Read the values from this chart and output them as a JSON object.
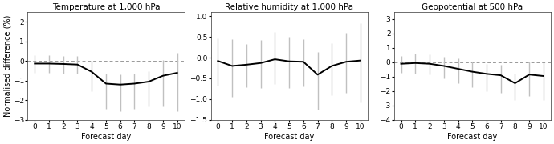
{
  "panels": [
    {
      "title": "Temperature at 1,000 hPa",
      "x": [
        0,
        1,
        2,
        3,
        4,
        5,
        6,
        7,
        8,
        9,
        10
      ],
      "y": [
        -0.13,
        -0.13,
        -0.15,
        -0.18,
        -0.55,
        -1.15,
        -1.2,
        -1.15,
        -1.05,
        -0.75,
        -0.6
      ],
      "yerr_lo": [
        0.45,
        0.45,
        0.5,
        0.45,
        1.0,
        1.3,
        1.35,
        1.3,
        1.25,
        1.55,
        1.95
      ],
      "yerr_hi": [
        0.42,
        0.42,
        0.42,
        0.42,
        0.55,
        0.5,
        0.5,
        0.52,
        0.55,
        0.82,
        1.0
      ],
      "ylim": [
        -3,
        2.5
      ],
      "yticks": [
        -3,
        -2,
        -1,
        0,
        1,
        2
      ],
      "ylabel": "Normalised difference (%)"
    },
    {
      "title": "Relative humidity at 1,000 hPa",
      "x": [
        0,
        1,
        2,
        3,
        4,
        5,
        6,
        7,
        8,
        9,
        10
      ],
      "y": [
        -0.08,
        -0.2,
        -0.17,
        -0.13,
        -0.04,
        -0.09,
        -0.1,
        -0.41,
        -0.2,
        -0.1,
        -0.07
      ],
      "yerr_lo": [
        0.6,
        0.75,
        0.55,
        0.6,
        0.6,
        0.65,
        0.6,
        0.85,
        0.7,
        0.75,
        1.0
      ],
      "yerr_hi": [
        0.55,
        0.65,
        0.5,
        0.55,
        0.65,
        0.6,
        0.55,
        0.55,
        0.55,
        0.7,
        0.9
      ],
      "ylim": [
        -1.5,
        1.1
      ],
      "yticks": [
        -1.5,
        -1,
        -0.5,
        0,
        0.5,
        1
      ],
      "ylabel": ""
    },
    {
      "title": "Geopotential at 500 hPa",
      "x": [
        0,
        1,
        2,
        3,
        4,
        5,
        6,
        7,
        8,
        9,
        10
      ],
      "y": [
        -0.1,
        -0.05,
        -0.1,
        -0.25,
        -0.45,
        -0.65,
        -0.8,
        -0.9,
        -1.45,
        -0.85,
        -0.95
      ],
      "yerr_lo": [
        0.65,
        0.75,
        0.75,
        0.85,
        1.0,
        1.1,
        1.2,
        1.2,
        1.15,
        1.5,
        1.65
      ],
      "yerr_hi": [
        0.55,
        0.65,
        0.65,
        0.65,
        0.7,
        0.7,
        0.7,
        0.75,
        0.65,
        0.9,
        0.95
      ],
      "ylim": [
        -4,
        3.5
      ],
      "yticks": [
        -4,
        -3,
        -2,
        -1,
        0,
        1,
        2,
        3
      ],
      "ylabel": ""
    }
  ],
  "xlabel": "Forecast day",
  "line_color": "#000000",
  "errorbar_color": "#c0c0c0",
  "dashed_color": "#999999",
  "background_color": "#ffffff",
  "title_fontsize": 7.5,
  "label_fontsize": 7.0,
  "tick_fontsize": 6.5
}
